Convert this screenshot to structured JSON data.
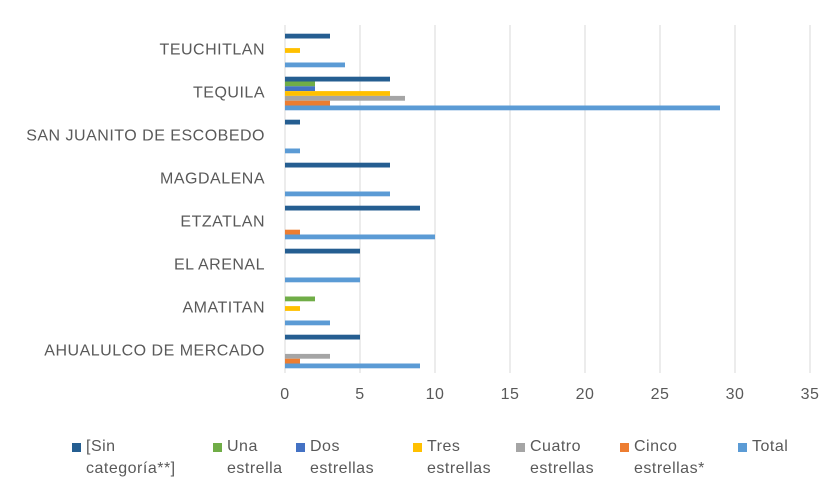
{
  "chart_data": {
    "type": "hbar",
    "categories": [
      "TEUCHITLAN",
      "TEQUILA",
      "SAN JUANITO DE ESCOBEDO",
      "MAGDALENA",
      "ETZATLAN",
      "EL ARENAL",
      "AMATITAN",
      "AHUALULCO DE MERCADO"
    ],
    "series": [
      {
        "name": "[Sin categoría**]",
        "color": "#255e91",
        "values": [
          3,
          7,
          1,
          7,
          9,
          5,
          0,
          5
        ]
      },
      {
        "name": "Una estrella",
        "color": "#70ad47",
        "values": [
          0,
          2,
          0,
          0,
          0,
          0,
          2,
          0
        ]
      },
      {
        "name": "Dos estrellas",
        "color": "#4472c4",
        "values": [
          0,
          2,
          0,
          0,
          0,
          0,
          0,
          0
        ]
      },
      {
        "name": "Tres estrellas",
        "color": "#ffc000",
        "values": [
          1,
          7,
          0,
          0,
          0,
          0,
          1,
          0
        ]
      },
      {
        "name": "Cuatro estrellas",
        "color": "#a5a5a5",
        "values": [
          0,
          8,
          0,
          0,
          0,
          0,
          0,
          3
        ]
      },
      {
        "name": "Cinco estrellas*",
        "color": "#ed7d31",
        "values": [
          0,
          3,
          0,
          0,
          1,
          0,
          0,
          1
        ]
      },
      {
        "name": "Total",
        "color": "#5b9bd5",
        "values": [
          4,
          29,
          1,
          7,
          10,
          5,
          3,
          9
        ]
      }
    ],
    "xlim": [
      0,
      35
    ],
    "xticks": [
      0,
      5,
      10,
      15,
      20,
      25,
      30,
      35
    ],
    "grid": true,
    "legend": "bottom"
  }
}
